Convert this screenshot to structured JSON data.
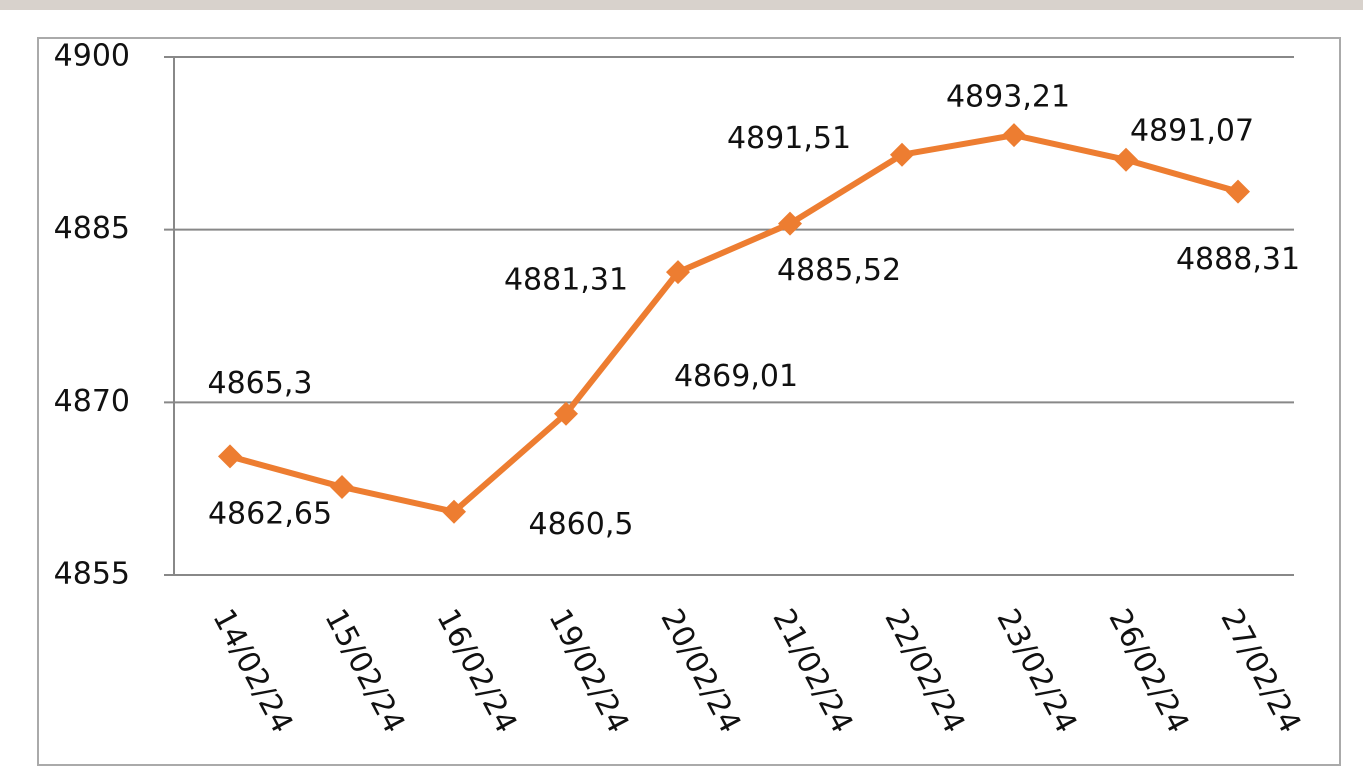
{
  "chart_data": {
    "type": "line",
    "categories": [
      "14/02/24",
      "15/02/24",
      "16/02/24",
      "19/02/24",
      "20/02/24",
      "21/02/24",
      "22/02/24",
      "23/02/24",
      "26/02/24",
      "27/02/24"
    ],
    "values": [
      4865.3,
      4862.65,
      4860.5,
      4869.01,
      4881.31,
      4885.52,
      4891.51,
      4893.21,
      4891.07,
      4888.31
    ],
    "value_labels": [
      "4865,3",
      "4862,65",
      "4860,5",
      "4869,01",
      "4881,31",
      "4885,52",
      "4891,51",
      "4893,21",
      "4891,07",
      "4888,31"
    ],
    "color": "#ed7d31",
    "ylim": [
      4855,
      4900
    ],
    "yticks": [
      4855,
      4870,
      4885,
      4900
    ],
    "grid": true
  }
}
